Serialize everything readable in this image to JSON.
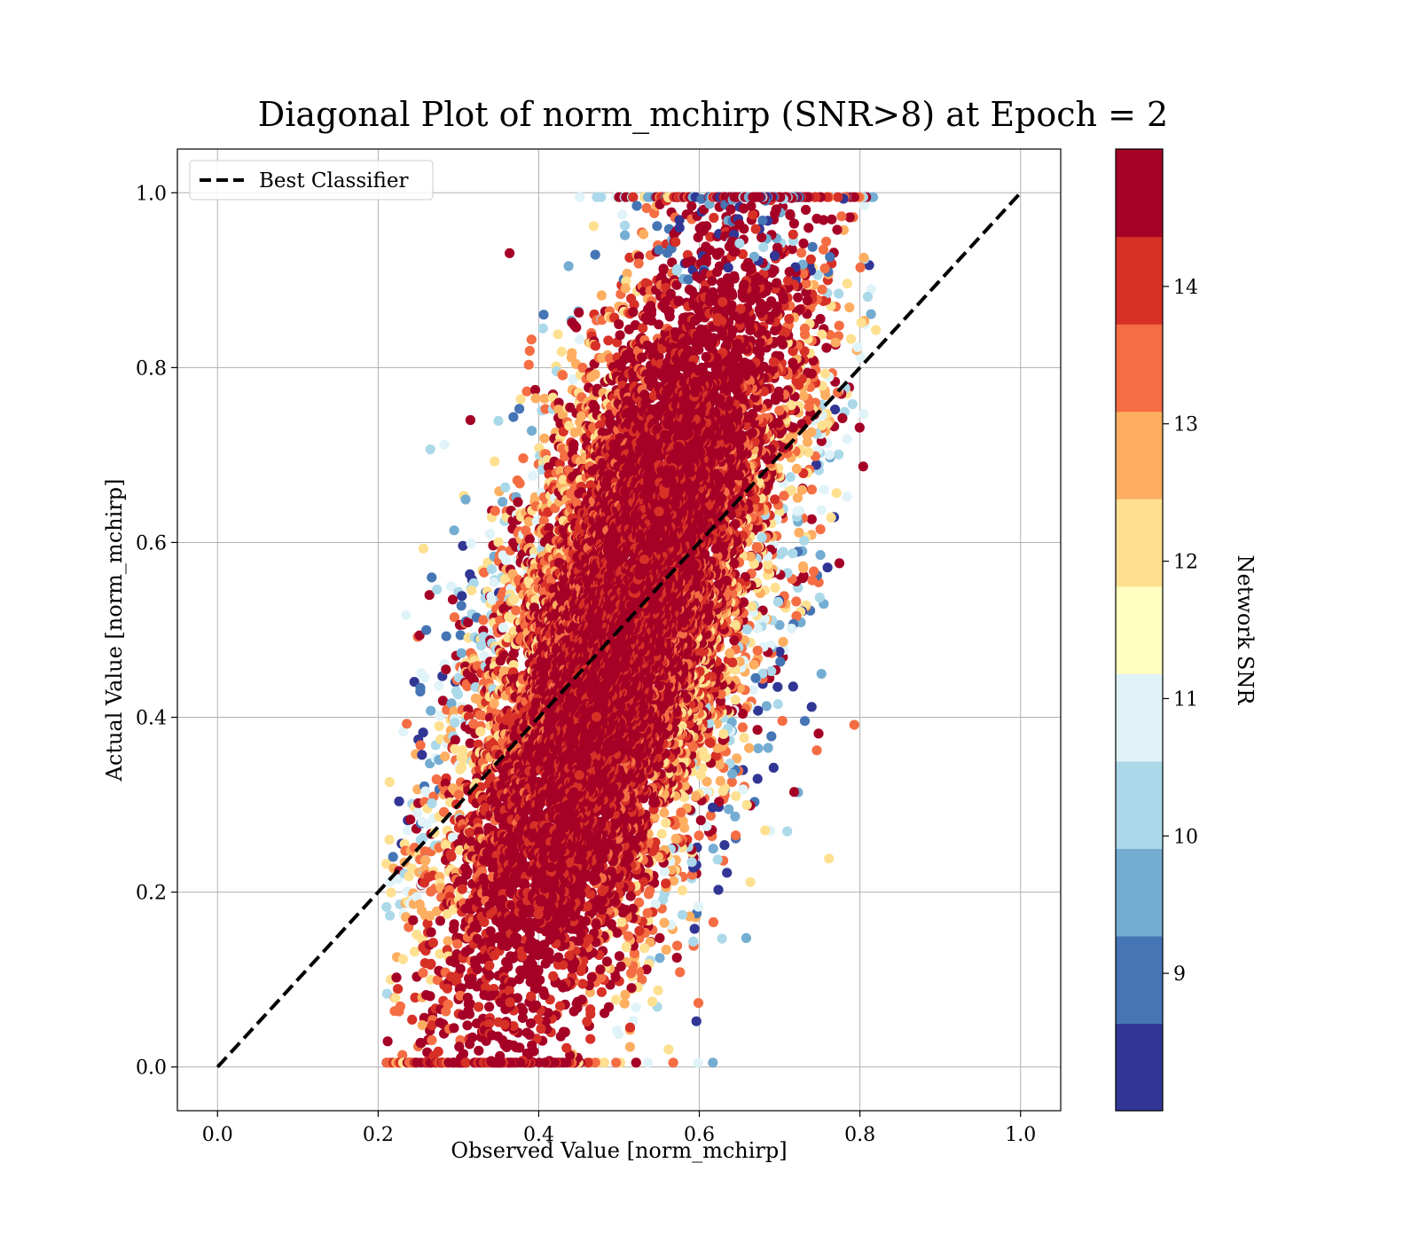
{
  "chart_data": {
    "type": "scatter",
    "title": "Diagonal Plot of norm_mchirp (SNR>8) at Epoch = 2",
    "xlabel": "Observed Value [norm_mchirp]",
    "ylabel": "Actual Value [norm_mchirp]",
    "xlim": [
      -0.05,
      1.05
    ],
    "ylim": [
      -0.05,
      1.05
    ],
    "xticks": [
      0.0,
      0.2,
      0.4,
      0.6,
      0.8,
      1.0
    ],
    "yticks": [
      0.0,
      0.2,
      0.4,
      0.6,
      0.8,
      1.0
    ],
    "xtick_labels": [
      "0.0",
      "0.2",
      "0.4",
      "0.6",
      "0.8",
      "1.0"
    ],
    "ytick_labels": [
      "0.0",
      "0.2",
      "0.4",
      "0.6",
      "0.8",
      "1.0"
    ],
    "grid": true,
    "legend": {
      "position": "upper-left",
      "entries": [
        "Best Classifier"
      ]
    },
    "reference_line": {
      "name": "Best Classifier",
      "style": "dashed",
      "color": "#000000",
      "x": [
        0.0,
        1.0
      ],
      "y": [
        0.0,
        1.0
      ]
    },
    "colorbar": {
      "label": "Network SNR",
      "range": [
        8.0,
        15.0
      ],
      "ticks": [
        9,
        10,
        11,
        12,
        13,
        14
      ],
      "tick_labels": [
        "9",
        "10",
        "11",
        "12",
        "13",
        "14"
      ],
      "band_colors": [
        "#313695",
        "#4575b4",
        "#74add1",
        "#abd9e9",
        "#e0f3f8",
        "#ffffbf",
        "#fee090",
        "#fdae61",
        "#f46d43",
        "#d73027",
        "#a50026"
      ]
    },
    "scatter_description": {
      "distribution": "dense cloud along the diagonal; observed values roughly 0.21-0.82, actual values 0.0-1.0; high-SNR (red) points dominate the central band, low-SNR (blue) points at the upper-left and lower-right edges",
      "palette": [
        "#313695",
        "#4575b4",
        "#74add1",
        "#abd9e9",
        "#e0f3f8",
        "#fee090",
        "#fdae61",
        "#f46d43",
        "#d73027",
        "#a50026"
      ]
    }
  }
}
